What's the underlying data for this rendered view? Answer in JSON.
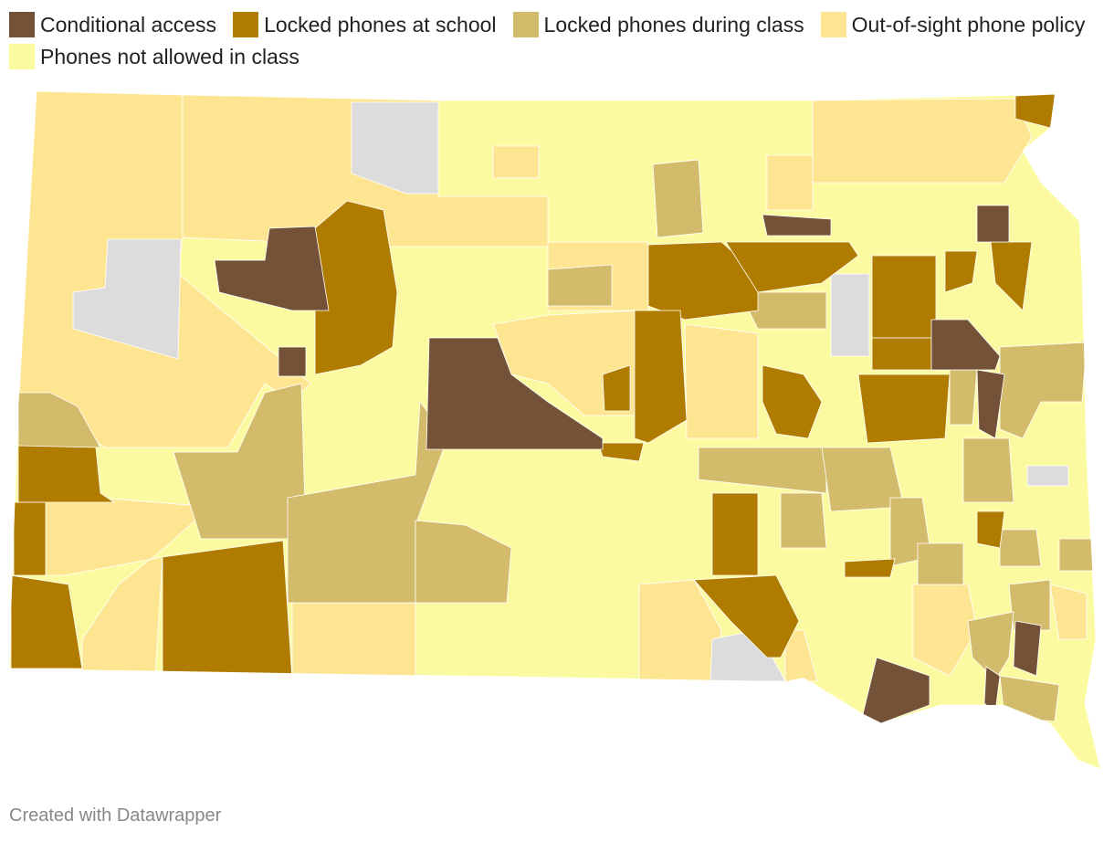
{
  "legend": {
    "items": [
      {
        "label": "Conditional access",
        "color": "#735238"
      },
      {
        "label": "Locked phones at school",
        "color": "#b07c00"
      },
      {
        "label": "Locked phones during class",
        "color": "#d3bb6c"
      },
      {
        "label": "Out-of-sight phone policy",
        "color": "#fee592"
      },
      {
        "label": "Phones not allowed in class",
        "color": "#fcfaa0"
      }
    ]
  },
  "footer": {
    "credit": "Created with Datawrapper"
  }
}
